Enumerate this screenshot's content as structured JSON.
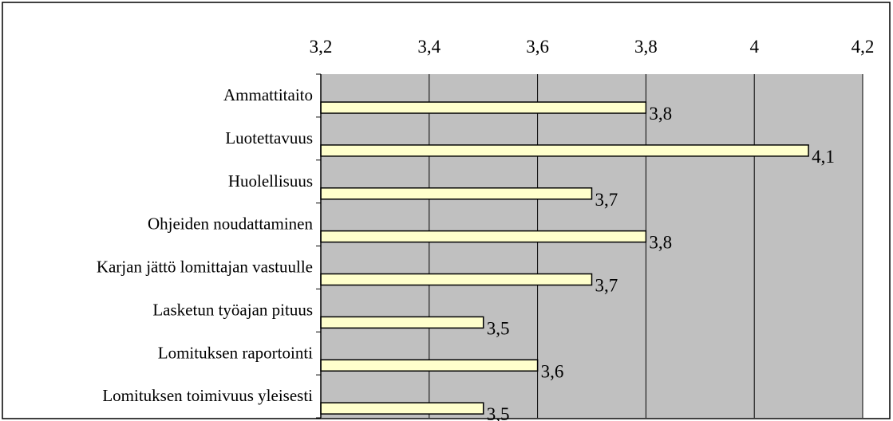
{
  "chart_data": {
    "type": "bar",
    "orientation": "horizontal",
    "categories": [
      "Ammattitaito",
      "Luotettavuus",
      "Huolellisuus",
      "Ohjeiden noudattaminen",
      "Karjan jättö lomittajan vastuulle",
      "Lasketun työajan pituus",
      "Lomituksen raportointi",
      "Lomituksen toimivuus yleisesti"
    ],
    "values": [
      3.8,
      4.1,
      3.7,
      3.8,
      3.7,
      3.5,
      3.6,
      3.5
    ],
    "data_labels": [
      "3,8",
      "4,1",
      "3,7",
      "3,8",
      "3,7",
      "3,5",
      "3,6",
      "3,5"
    ],
    "xlim": [
      3.2,
      4.2
    ],
    "x_ticks": [
      3.2,
      3.4,
      3.6,
      3.8,
      4.0,
      4.2
    ],
    "x_tick_labels": [
      "3,2",
      "3,4",
      "3,6",
      "3,8",
      "4",
      "4,2"
    ],
    "x_axis_position": "top",
    "grid": true,
    "legend": "none",
    "colors": {
      "plot_background": "#c0c0c0",
      "bar_fill": "#ffffcc",
      "bar_stroke": "#000000",
      "gridline": "#000000",
      "border": "#000000"
    }
  }
}
